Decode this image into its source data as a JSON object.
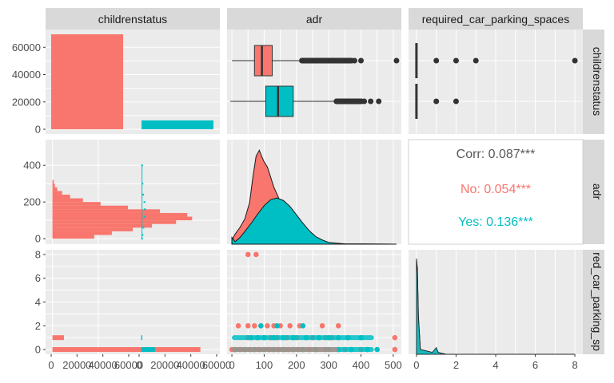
{
  "chart_data": {
    "type": "pairs",
    "variables": [
      "childrenstatus",
      "adr",
      "required_car_parking_spaces"
    ],
    "column_strips": [
      "childrenstatus",
      "adr",
      "required_car_parking_spaces"
    ],
    "row_strips": [
      "childrenstatus",
      "adr",
      "red_car_parking_sp"
    ],
    "groups": [
      {
        "name": "No",
        "color": "#F8766D"
      },
      {
        "name": "Yes",
        "color": "#00BFC4"
      }
    ],
    "grid": true,
    "axes": {
      "count_y_ticks": [
        "0",
        "20000",
        "40000",
        "60000"
      ],
      "count_y_values": [
        0,
        20000,
        40000,
        60000
      ],
      "count_x_ticks": [
        "0",
        "20000",
        "40000",
        "60000"
      ],
      "count_x_values": [
        0,
        20000,
        40000,
        60000
      ],
      "adr_ticks": [
        "0",
        "100",
        "200",
        "300",
        "400",
        "500"
      ],
      "adr_values": [
        0,
        100,
        200,
        300,
        400,
        500
      ],
      "adr_y_ticks": [
        "0",
        "200",
        "400"
      ],
      "adr_y_values": [
        0,
        200,
        400
      ],
      "parking_ticks": [
        "0",
        "2",
        "4",
        "6",
        "8"
      ],
      "parking_values": [
        0,
        2,
        4,
        6,
        8
      ]
    },
    "bar_counts": [
      {
        "category": "No",
        "value": 69500
      },
      {
        "category": "Yes",
        "value": 6500
      }
    ],
    "adr_box": [
      {
        "group": "No",
        "min": 0,
        "q1": 70,
        "median": 93,
        "q3": 125,
        "upper_whisker": 208,
        "outliers": [
          230,
          260,
          290,
          320,
          350,
          380,
          400,
          510
        ]
      },
      {
        "group": "Yes",
        "min": -5,
        "q1": 105,
        "median": 143,
        "q3": 190,
        "upper_whisker": 315,
        "outliers": [
          330,
          360,
          390,
          410,
          430,
          455
        ]
      }
    ],
    "parking_points": [
      {
        "group": "No",
        "values": [
          0,
          1,
          2,
          3,
          8
        ]
      },
      {
        "group": "Yes",
        "values": [
          0,
          1,
          2
        ]
      }
    ],
    "adr_hist": [
      {
        "group": "No",
        "bins": [
          [
            0,
            2600
          ],
          [
            20,
            3700
          ],
          [
            40,
            5000
          ],
          [
            60,
            6200
          ],
          [
            80,
            7700
          ],
          [
            100,
            8700
          ],
          [
            120,
            8400
          ],
          [
            140,
            6700
          ],
          [
            160,
            4700
          ],
          [
            180,
            3000
          ],
          [
            200,
            1900
          ],
          [
            220,
            1100
          ],
          [
            240,
            600
          ],
          [
            260,
            300
          ],
          [
            280,
            150
          ],
          [
            300,
            80
          ]
        ]
      },
      {
        "group": "Yes",
        "bins": [
          [
            60,
            200
          ],
          [
            80,
            400
          ],
          [
            100,
            600
          ],
          [
            120,
            750
          ],
          [
            140,
            850
          ],
          [
            160,
            800
          ],
          [
            180,
            650
          ],
          [
            200,
            500
          ],
          [
            220,
            350
          ],
          [
            240,
            200
          ],
          [
            260,
            100
          ]
        ]
      }
    ],
    "adr_density": [
      {
        "group": "No",
        "points": [
          [
            0,
            0.0005
          ],
          [
            10,
            0.0012
          ],
          [
            25,
            0.002
          ],
          [
            40,
            0.003
          ],
          [
            55,
            0.005
          ],
          [
            65,
            0.008
          ],
          [
            75,
            0.0105
          ],
          [
            85,
            0.0112
          ],
          [
            92,
            0.0105
          ],
          [
            100,
            0.0098
          ],
          [
            110,
            0.0092
          ],
          [
            120,
            0.008
          ],
          [
            130,
            0.0068
          ],
          [
            145,
            0.0055
          ],
          [
            160,
            0.004
          ],
          [
            180,
            0.0025
          ],
          [
            200,
            0.0014
          ],
          [
            220,
            0.0008
          ],
          [
            250,
            0.0004
          ],
          [
            300,
            0.0001
          ],
          [
            350,
            3e-05
          ],
          [
            510,
            0.0
          ]
        ]
      },
      {
        "group": "Yes",
        "points": [
          [
            0,
            0.0008
          ],
          [
            10,
            0.0003
          ],
          [
            25,
            0.0008
          ],
          [
            40,
            0.0015
          ],
          [
            60,
            0.0025
          ],
          [
            80,
            0.0036
          ],
          [
            100,
            0.0046
          ],
          [
            120,
            0.0053
          ],
          [
            140,
            0.0055
          ],
          [
            160,
            0.0052
          ],
          [
            180,
            0.0045
          ],
          [
            200,
            0.0035
          ],
          [
            220,
            0.0025
          ],
          [
            240,
            0.0016
          ],
          [
            260,
            0.0009
          ],
          [
            280,
            0.0005
          ],
          [
            300,
            0.0002
          ],
          [
            350,
            4e-05
          ],
          [
            510,
            0.0
          ]
        ]
      }
    ],
    "adr_vs_childrenstatus_density": [
      {
        "group": "No",
        "points": [
          [
            -1.0,
            0
          ],
          [
            0.02,
            5
          ],
          [
            0.04,
            40
          ],
          [
            0.05,
            90
          ],
          [
            0.04,
            150
          ],
          [
            0.02,
            220
          ],
          [
            0.005,
            300
          ],
          [
            0.0,
            400
          ]
        ]
      },
      {
        "group": "Yes",
        "points": [
          [
            0.0,
            0
          ],
          [
            0.02,
            20
          ],
          [
            0.06,
            60
          ],
          [
            0.1,
            120
          ],
          [
            0.12,
            160
          ],
          [
            0.1,
            200
          ],
          [
            0.05,
            240
          ],
          [
            0.02,
            300
          ],
          [
            0.005,
            400
          ]
        ]
      }
    ],
    "parking_hist": [
      {
        "group": "No",
        "bins": [
          [
            0,
            64500
          ],
          [
            1,
            5000
          ]
        ]
      },
      {
        "group": "Yes",
        "bins": [
          [
            0,
            6000
          ],
          [
            1,
            500
          ]
        ]
      }
    ],
    "parking_density": [
      {
        "group": "No",
        "points": [
          [
            0,
            1.0
          ],
          [
            0.05,
            0.9
          ],
          [
            0.1,
            0.4
          ],
          [
            0.2,
            0.05
          ],
          [
            0.8,
            0.02
          ],
          [
            1.0,
            0.06
          ],
          [
            1.1,
            0.02
          ],
          [
            1.5,
            0.0
          ],
          [
            8,
            0.0
          ]
        ]
      },
      {
        "group": "Yes",
        "points": [
          [
            0,
            0.95
          ],
          [
            0.05,
            0.85
          ],
          [
            0.1,
            0.38
          ],
          [
            0.2,
            0.05
          ],
          [
            0.8,
            0.02
          ],
          [
            1.0,
            0.07
          ],
          [
            1.1,
            0.02
          ],
          [
            1.5,
            0.0
          ],
          [
            8,
            0.0
          ]
        ]
      }
    ],
    "scatter_adr_parking": [
      {
        "group": "No",
        "points": [
          [
            50,
            8
          ],
          [
            75,
            8
          ],
          [
            20,
            2
          ],
          [
            50,
            2
          ],
          [
            70,
            2
          ],
          [
            90,
            2
          ],
          [
            110,
            2
          ],
          [
            130,
            2
          ],
          [
            150,
            2
          ],
          [
            180,
            2
          ],
          [
            210,
            2
          ],
          [
            280,
            2
          ],
          [
            330,
            2
          ],
          [
            50,
            1
          ],
          [
            80,
            1
          ],
          [
            100,
            1
          ],
          [
            120,
            1
          ],
          [
            140,
            1
          ],
          [
            170,
            1
          ],
          [
            200,
            1
          ],
          [
            250,
            1
          ],
          [
            290,
            1
          ],
          [
            310,
            1
          ],
          [
            505,
            1
          ],
          [
            0,
            0
          ],
          [
            25,
            0
          ],
          [
            55,
            0
          ],
          [
            85,
            0
          ],
          [
            115,
            0
          ],
          [
            145,
            0
          ],
          [
            175,
            0
          ],
          [
            205,
            0
          ],
          [
            240,
            0
          ],
          [
            290,
            0
          ],
          [
            350,
            0
          ],
          [
            400,
            0
          ],
          [
            505,
            0
          ]
        ]
      },
      {
        "group": "Yes",
        "points": [
          [
            90,
            2
          ],
          [
            140,
            2
          ],
          [
            220,
            2
          ],
          [
            60,
            1
          ],
          [
            80,
            1
          ],
          [
            100,
            1
          ],
          [
            130,
            1
          ],
          [
            160,
            1
          ],
          [
            190,
            1
          ],
          [
            230,
            1
          ],
          [
            270,
            1
          ],
          [
            300,
            1
          ],
          [
            330,
            1
          ],
          [
            360,
            1
          ],
          [
            400,
            1
          ],
          [
            10,
            0
          ],
          [
            40,
            0
          ],
          [
            70,
            0
          ],
          [
            100,
            0
          ],
          [
            130,
            0
          ],
          [
            160,
            0
          ],
          [
            190,
            0
          ],
          [
            220,
            0
          ],
          [
            260,
            0
          ],
          [
            300,
            0
          ],
          [
            330,
            0
          ],
          [
            370,
            0
          ],
          [
            420,
            0
          ],
          [
            450,
            0
          ]
        ]
      }
    ],
    "correlation": {
      "overall_label": "Corr: 0.087***",
      "groups": [
        {
          "group": "No",
          "label": "No: 0.054***"
        },
        {
          "group": "Yes",
          "label": "Yes: 0.136***"
        }
      ]
    }
  }
}
